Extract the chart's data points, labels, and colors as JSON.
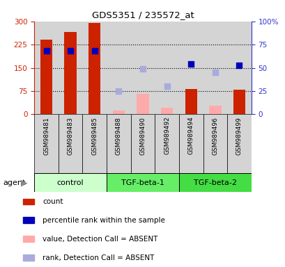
{
  "title": "GDS5351 / 235572_at",
  "samples": [
    "GSM989481",
    "GSM989483",
    "GSM989485",
    "GSM989488",
    "GSM989490",
    "GSM989492",
    "GSM989494",
    "GSM989496",
    "GSM989499"
  ],
  "group_bounds": [
    {
      "start": 0,
      "end": 3,
      "label": "control",
      "color": "#ccffcc"
    },
    {
      "start": 3,
      "end": 6,
      "label": "TGF-beta-1",
      "color": "#66ee66"
    },
    {
      "start": 6,
      "end": 9,
      "label": "TGF-beta-2",
      "color": "#44dd44"
    }
  ],
  "count_present": [
    240,
    265,
    295,
    null,
    null,
    null,
    82,
    null,
    79
  ],
  "count_absent": [
    null,
    null,
    null,
    13,
    65,
    22,
    null,
    28,
    null
  ],
  "rank_present": [
    68,
    68,
    68,
    null,
    null,
    null,
    54,
    null,
    53
  ],
  "rank_absent": [
    null,
    null,
    null,
    25,
    49,
    30,
    null,
    45,
    null
  ],
  "ylim_left": [
    0,
    300
  ],
  "ylim_right": [
    0,
    100
  ],
  "yticks_left": [
    0,
    75,
    150,
    225,
    300
  ],
  "yticks_right": [
    0,
    25,
    50,
    75,
    100
  ],
  "ytick_labels_left": [
    "0",
    "75",
    "150",
    "225",
    "300"
  ],
  "ytick_labels_right": [
    "0",
    "25",
    "50",
    "75",
    "100%"
  ],
  "bar_color_present": "#cc2200",
  "bar_color_absent": "#ffaaaa",
  "marker_color_present": "#0000bb",
  "marker_color_absent": "#aaaadd",
  "col_bg_color": "#d4d4d4",
  "legend_items": [
    {
      "color": "#cc2200",
      "label": "count"
    },
    {
      "color": "#0000bb",
      "label": "percentile rank within the sample"
    },
    {
      "color": "#ffaaaa",
      "label": "value, Detection Call = ABSENT"
    },
    {
      "color": "#aaaadd",
      "label": "rank, Detection Call = ABSENT"
    }
  ]
}
